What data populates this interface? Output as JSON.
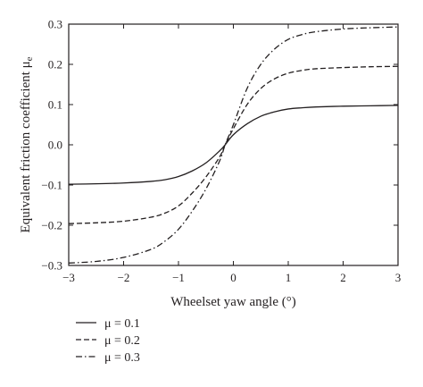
{
  "chart_data": {
    "type": "line",
    "title": "",
    "xlabel": "Wheelset yaw angle (°)",
    "ylabel": "Equivalent friction coefficient μ",
    "ylabel_subscript": "e",
    "xlim": [
      -3,
      3
    ],
    "ylim": [
      -0.3,
      0.3
    ],
    "xticks": [
      -3,
      -2,
      -1,
      0,
      1,
      2,
      3
    ],
    "yticks": [
      -0.3,
      -0.2,
      -0.1,
      0.0,
      0.1,
      0.2,
      0.3
    ],
    "xtick_labels": [
      "−3",
      "−2",
      "−1",
      "0",
      "1",
      "2",
      "3"
    ],
    "ytick_labels": [
      "−0.3",
      "−0.2",
      "−0.1",
      "0.0",
      "0.1",
      "0.2",
      "0.3"
    ],
    "grid": false,
    "legend_position": "bottom-left",
    "x": [
      -3,
      -2.5,
      -2,
      -1.5,
      -1.25,
      -1,
      -0.75,
      -0.5,
      -0.25,
      -0.15,
      0,
      0.25,
      0.5,
      0.75,
      1,
      1.25,
      1.5,
      2,
      2.5,
      3
    ],
    "series": [
      {
        "name": "μ = 0.1",
        "line_style": "solid",
        "values": [
          -0.098,
          -0.097,
          -0.095,
          -0.091,
          -0.087,
          -0.079,
          -0.065,
          -0.045,
          -0.015,
          0.0,
          0.025,
          0.052,
          0.071,
          0.082,
          0.089,
          0.092,
          0.094,
          0.096,
          0.097,
          0.098
        ]
      },
      {
        "name": "μ = 0.2",
        "line_style": "dashed",
        "values": [
          -0.196,
          -0.194,
          -0.19,
          -0.18,
          -0.17,
          -0.152,
          -0.12,
          -0.08,
          -0.03,
          0.0,
          0.04,
          0.1,
          0.14,
          0.164,
          0.178,
          0.185,
          0.189,
          0.192,
          0.194,
          0.195
        ]
      },
      {
        "name": "μ = 0.3",
        "line_style": "dashdot",
        "values": [
          -0.294,
          -0.29,
          -0.28,
          -0.26,
          -0.24,
          -0.21,
          -0.165,
          -0.11,
          -0.04,
          0.0,
          0.05,
          0.14,
          0.2,
          0.238,
          0.262,
          0.274,
          0.281,
          0.288,
          0.291,
          0.293
        ]
      }
    ]
  }
}
